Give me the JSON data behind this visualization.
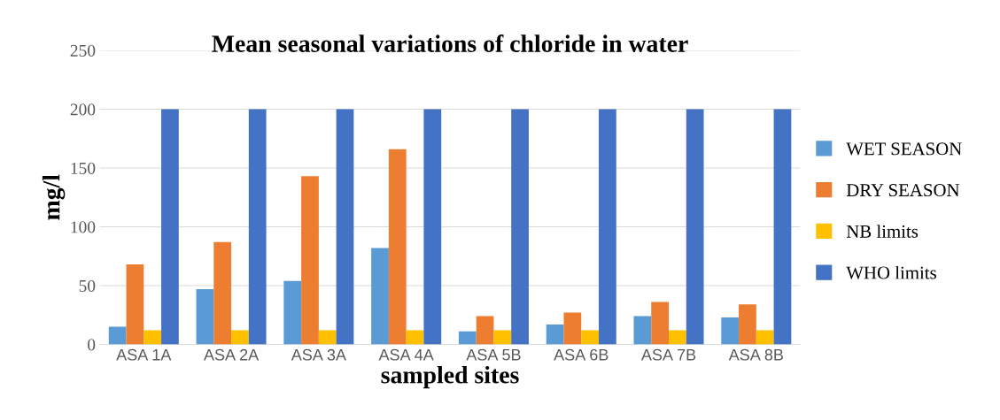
{
  "chart_data": {
    "type": "bar",
    "title": "Mean seasonal variations of chloride in water",
    "xlabel": "sampled sites",
    "ylabel": "mg/l",
    "categories": [
      "ASA 1A",
      "ASA 2A",
      "ASA 3A",
      "ASA 4A",
      "ASA 5B",
      "ASA 6B",
      "ASA 7B",
      "ASA 8B"
    ],
    "series": [
      {
        "name": "WET SEASON",
        "color": "#5b9bd5",
        "values": [
          15,
          47,
          54,
          82,
          11,
          17,
          24,
          23
        ]
      },
      {
        "name": "DRY SEASON",
        "color": "#ed7d31",
        "values": [
          68,
          87,
          143,
          166,
          24,
          27,
          36,
          34
        ]
      },
      {
        "name": "NB limits",
        "color": "#ffc000",
        "values": [
          12,
          12,
          12,
          12,
          12,
          12,
          12,
          12
        ]
      },
      {
        "name": "WHO limits",
        "color": "#4472c4",
        "values": [
          200,
          200,
          200,
          200,
          200,
          200,
          200,
          200
        ]
      }
    ],
    "ylim": [
      0,
      250
    ],
    "yticks": [
      0,
      50,
      100,
      150,
      200,
      250
    ],
    "grid": "y",
    "legend": "right"
  }
}
